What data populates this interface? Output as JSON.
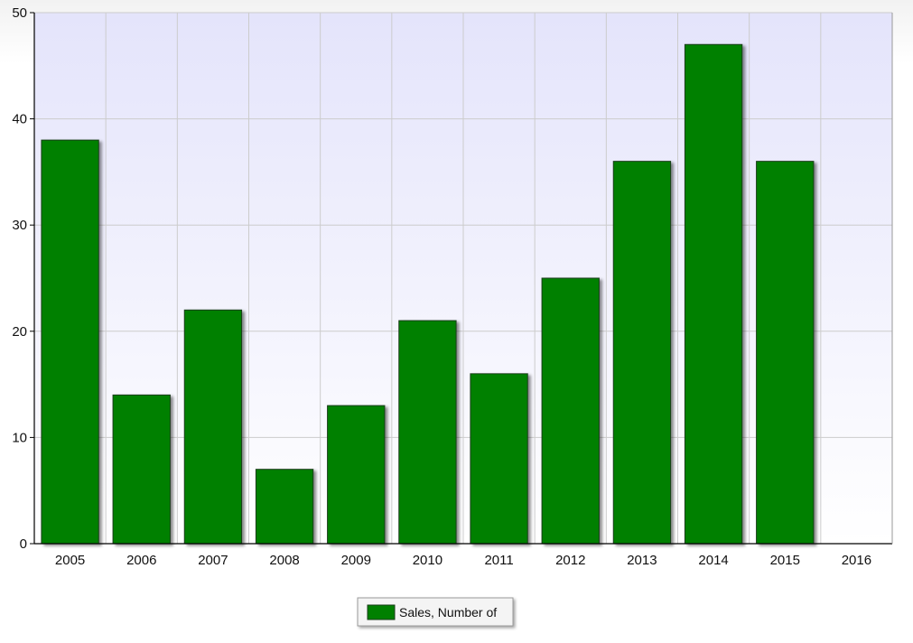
{
  "chart_data": {
    "type": "bar",
    "title": "",
    "xlabel": "",
    "ylabel": "",
    "categories": [
      "2005",
      "2006",
      "2007",
      "2008",
      "2009",
      "2010",
      "2011",
      "2012",
      "2013",
      "2014",
      "2015"
    ],
    "x_ticks": [
      "2005",
      "2006",
      "2007",
      "2008",
      "2009",
      "2010",
      "2011",
      "2012",
      "2013",
      "2014",
      "2015",
      "2016"
    ],
    "series": [
      {
        "name": "Sales, Number of",
        "values": [
          38,
          14,
          22,
          7,
          13,
          21,
          16,
          25,
          36,
          47,
          36
        ],
        "color": "#008000"
      }
    ],
    "ylim": [
      0,
      50
    ],
    "y_ticks": [
      0,
      10,
      20,
      30,
      40,
      50
    ],
    "grid": true,
    "legend_position": "bottom-center",
    "colors": {
      "bar": "#008000",
      "bar_border": "#1a3d1a",
      "plot_top": "#e4e4fb",
      "plot_bottom": "#ffffff",
      "grid": "#cccccc",
      "axis": "#000000"
    }
  }
}
